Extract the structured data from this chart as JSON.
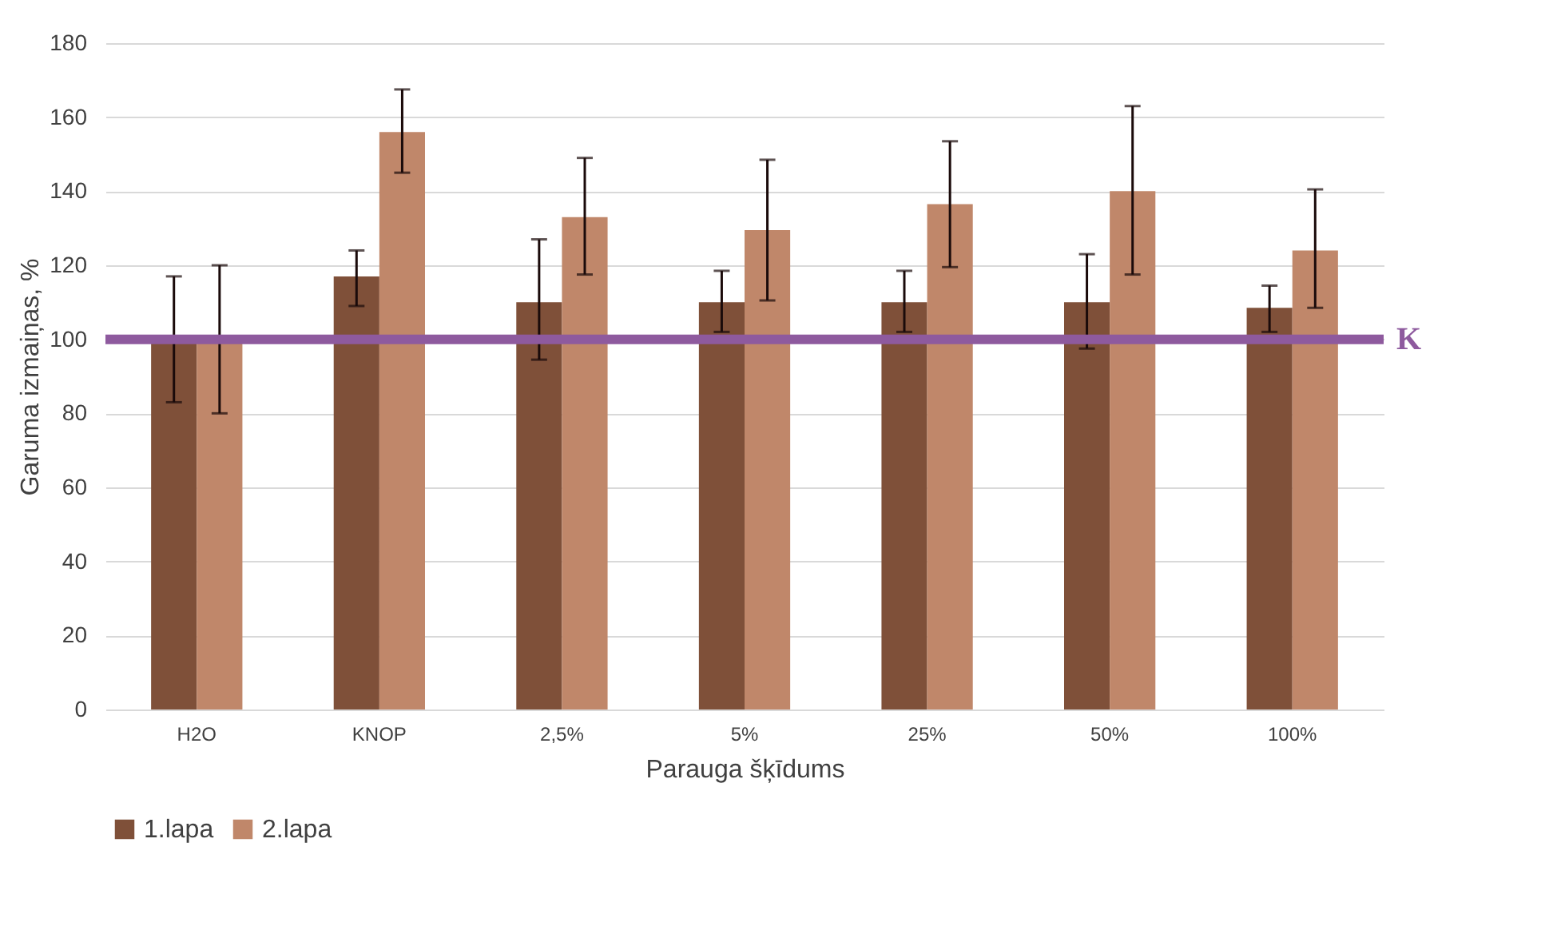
{
  "chart_data": {
    "type": "bar",
    "xlabel": "Parauga šķīdums",
    "ylabel": "Garuma izmaiņas, %",
    "categories": [
      "H2O",
      "KNOP",
      "2,5%",
      "5%",
      "25%",
      "50%",
      "100%"
    ],
    "series": [
      {
        "name": "1.lapa",
        "color": "#7f5039",
        "values": [
          100,
          117,
          110,
          110,
          110,
          110,
          108.5
        ],
        "errors": [
          [
            83,
            117
          ],
          [
            109,
            124
          ],
          [
            94.5,
            127
          ],
          [
            102,
            118.5
          ],
          [
            102,
            118.5
          ],
          [
            97.5,
            123
          ],
          [
            102,
            114.5
          ]
        ]
      },
      {
        "name": "2.lapa",
        "color": "#c0876a",
        "values": [
          100,
          156,
          133,
          129.5,
          136.5,
          140,
          124
        ],
        "errors": [
          [
            80,
            120
          ],
          [
            145,
            167.5
          ],
          [
            117.5,
            149
          ],
          [
            110.5,
            148.5
          ],
          [
            119.5,
            153.5
          ],
          [
            117.5,
            163
          ],
          [
            108.5,
            140.5
          ]
        ]
      }
    ],
    "ylim": [
      0,
      180
    ],
    "yticks": [
      0,
      20,
      40,
      60,
      80,
      100,
      120,
      140,
      160,
      180
    ],
    "grid": "y",
    "legend": "bottom",
    "ref_lines": [
      {
        "axis": "y",
        "value": 100,
        "label": "K",
        "color": "#8e5a9e"
      }
    ]
  }
}
